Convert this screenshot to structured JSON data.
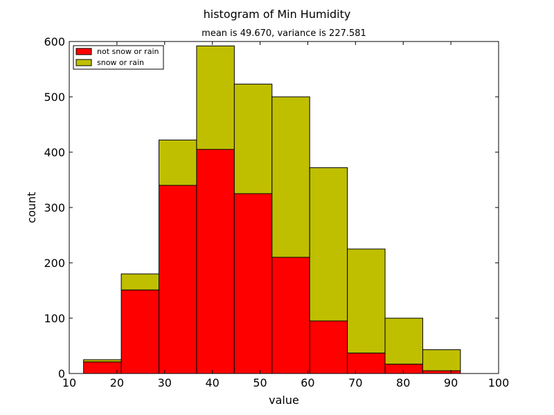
{
  "chart_data": {
    "type": "bar",
    "stacked": true,
    "title": "histogram of  Min Humidity",
    "subtitle": "mean is 49.670, variance is 227.581",
    "xlabel": "value",
    "ylabel": "count",
    "xlim": [
      10,
      100
    ],
    "ylim": [
      0,
      600
    ],
    "xticks": [
      10,
      20,
      30,
      40,
      50,
      60,
      70,
      80,
      90,
      100
    ],
    "yticks": [
      0,
      100,
      200,
      300,
      400,
      500,
      600
    ],
    "bin_edges": [
      13,
      20.9,
      28.8,
      36.7,
      44.6,
      52.5,
      60.4,
      68.3,
      76.2,
      84.1,
      92
    ],
    "grid": false,
    "legend_position": "top-left",
    "series": [
      {
        "name": "not snow or rain",
        "color": "#ff0000",
        "values": [
          21,
          151,
          340,
          405,
          325,
          210,
          95,
          37,
          17,
          5
        ]
      },
      {
        "name": "snow or rain",
        "color": "#bfbf00",
        "values": [
          4,
          29,
          82,
          187,
          198,
          290,
          277,
          188,
          83,
          38
        ]
      }
    ]
  }
}
